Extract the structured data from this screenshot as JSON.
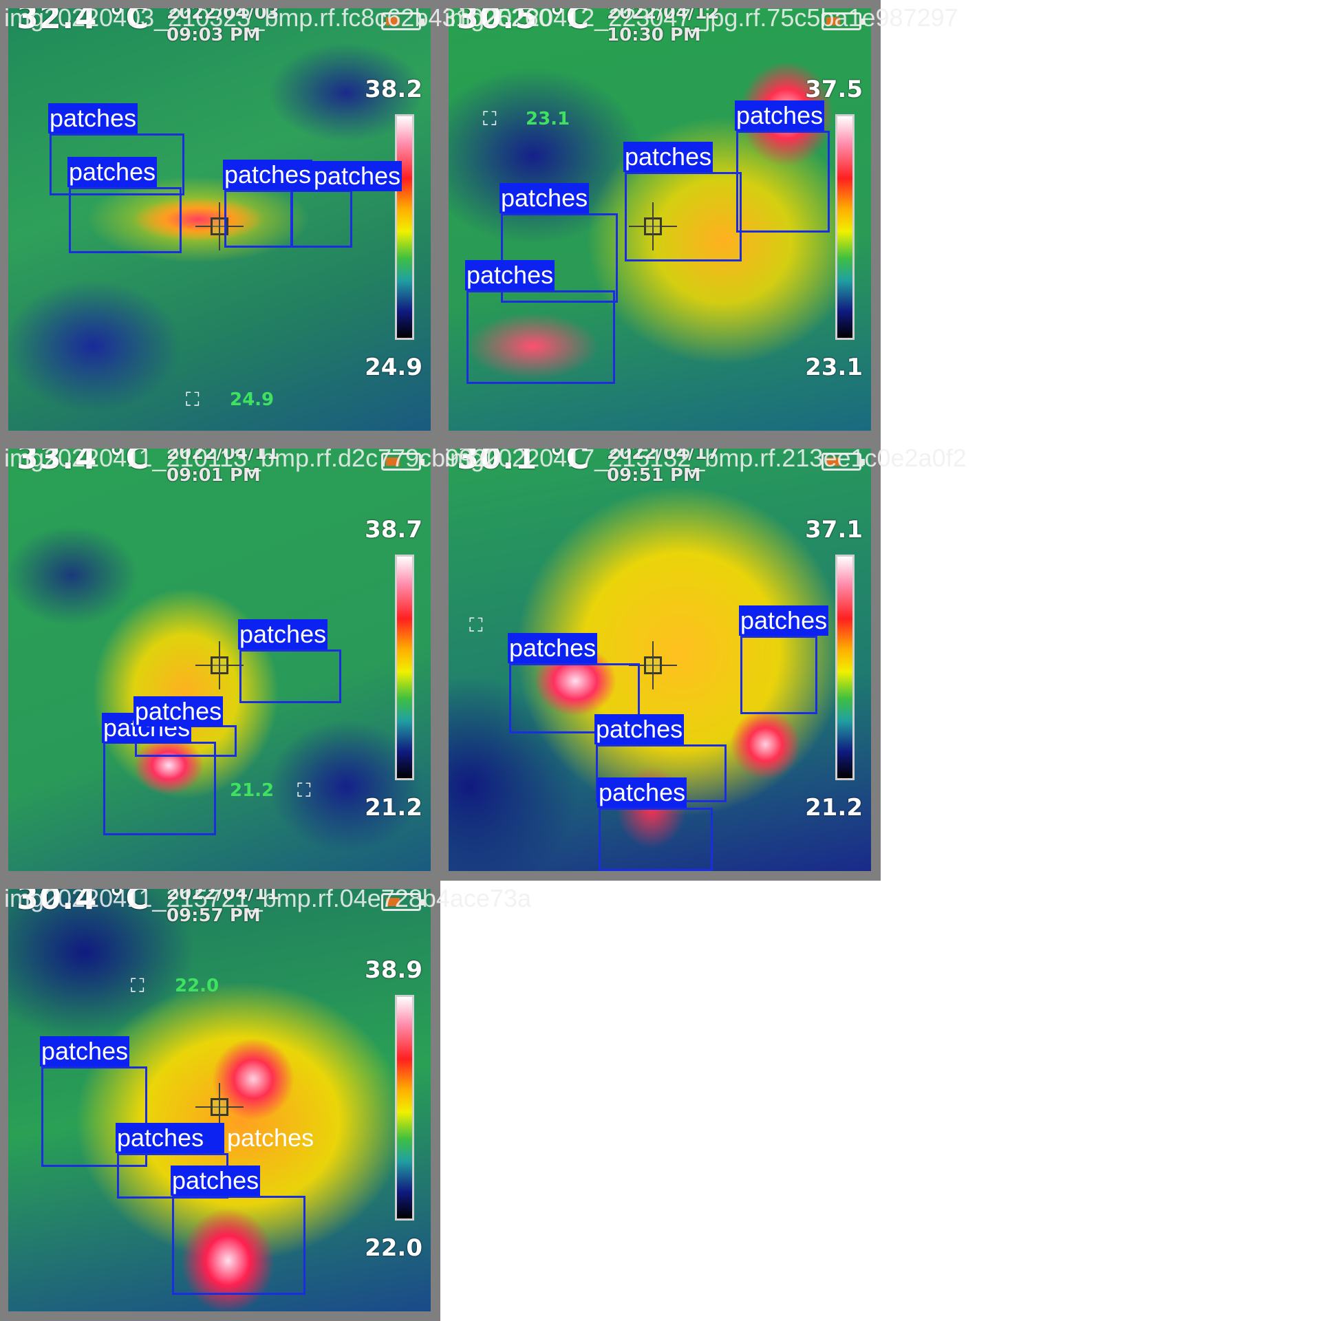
{
  "label_class": "patches",
  "tiles": [
    {
      "filename": "img20220403_210323_bmp.rf.fc8c62b431025260",
      "temperature": "32.4 °C",
      "date": "2022/04/03",
      "time": "09:03 PM",
      "scale_max": "38.2",
      "scale_min": "24.9",
      "spot_value": "24.9",
      "labels": [
        "patches",
        "patches",
        "patches",
        "patches"
      ]
    },
    {
      "filename": "img20220412_223047_jpg.rf.75c5ba1e987297",
      "temperature": "30.5 °C",
      "date": "2022/04/12",
      "time": "10:30 PM",
      "scale_max": "37.5",
      "scale_min": "23.1",
      "spot_value": "23.1",
      "labels": [
        "patches",
        "patches",
        "patches",
        "patches"
      ]
    },
    {
      "filename": "img20220411_210113_bmp.rf.d2c779cb9920",
      "temperature": "33.4 °C",
      "date": "2022/04/11",
      "time": "09:01 PM",
      "scale_max": "38.7",
      "scale_min": "21.2",
      "spot_value": "21.2",
      "labels": [
        "patches",
        "patches",
        "patches"
      ]
    },
    {
      "filename": "img20220417_215132_bmp.rf.213ee1c0e2a0f2",
      "temperature": "30.1 °C",
      "date": "2022/04/17",
      "time": "09:51 PM",
      "scale_max": "37.1",
      "scale_min": "21.2",
      "spot_value": "",
      "labels": [
        "patches",
        "patches",
        "patches",
        "patches"
      ]
    },
    {
      "filename": "img20220411_215721_bmp.rf.04e728b4ace73a",
      "temperature": "30.4 °C",
      "date": "2022/04/11",
      "time": "09:57 PM",
      "scale_max": "38.9",
      "scale_min": "22.0",
      "spot_value": "22.0",
      "labels": [
        "patches",
        "patches",
        "patches",
        "patches"
      ]
    }
  ],
  "colors": {
    "box_border": "#1a2ee0",
    "label_background": "#0b22f0",
    "tile_frame": "#7f7f7f"
  },
  "icons": [
    "crosshair-icon",
    "spot-target-icon",
    "battery-icon"
  ]
}
